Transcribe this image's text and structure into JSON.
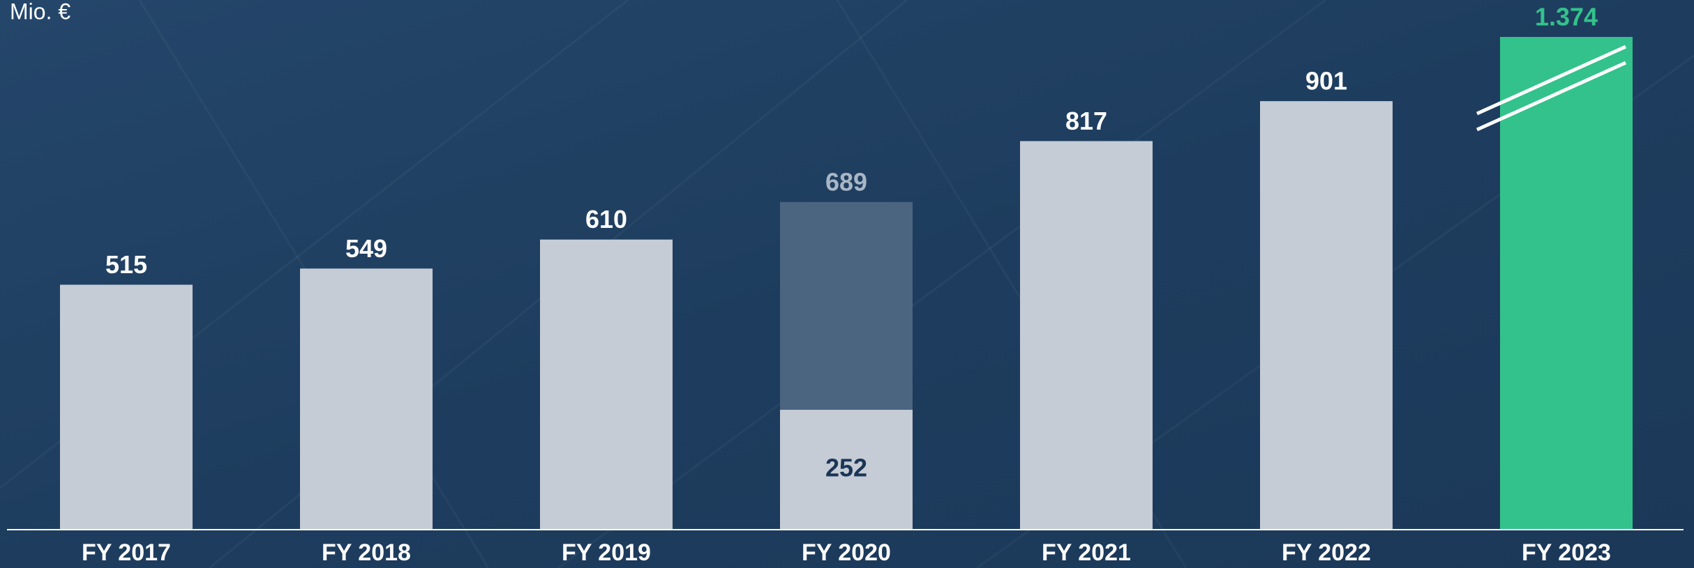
{
  "chart_data": {
    "type": "bar",
    "y_axis_label": "Mio. €",
    "categories": [
      "FY 2017",
      "FY 2018",
      "FY 2019",
      "FY 2020",
      "FY 2021",
      "FY 2022",
      "FY 2023"
    ],
    "series": [
      {
        "values": [
          515,
          549,
          610,
          689,
          817,
          901,
          1374
        ],
        "value_labels": [
          "515",
          "549",
          "610",
          "689",
          "817",
          "901",
          "1.374"
        ],
        "colors": [
          "#c5ccd5",
          "#c5ccd5",
          "#c5ccd5",
          "#4b6480",
          "#c5ccd5",
          "#c5ccd5",
          "#33c28b"
        ],
        "label_colors": [
          "#ffffff",
          "#ffffff",
          "#ffffff",
          "#a9b6c6",
          "#ffffff",
          "#ffffff",
          "#33c28b"
        ]
      },
      {
        "values": [
          null,
          null,
          null,
          252,
          null,
          null,
          null
        ],
        "color": "#c5ccd5",
        "label_color": "#1b3556"
      }
    ],
    "overlap": true,
    "ylim": [
      0,
      1036
    ],
    "grid": false
  }
}
